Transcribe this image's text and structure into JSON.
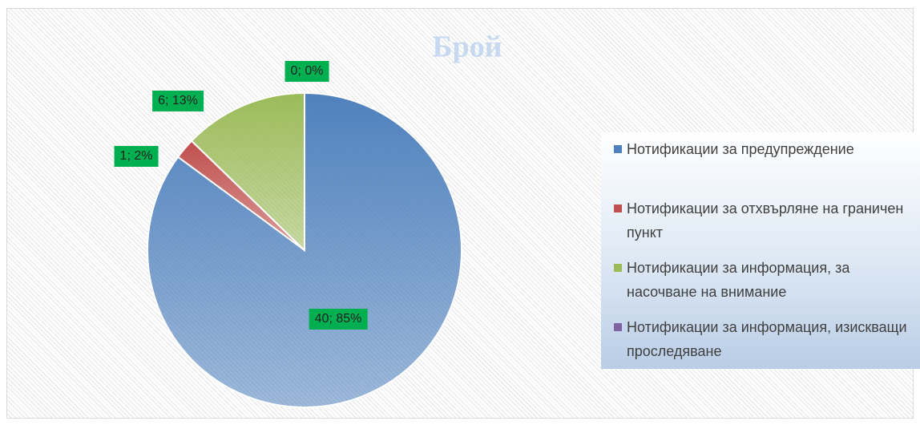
{
  "chart_data": {
    "type": "pie",
    "title": "Брой",
    "categories": [
      "Нотификации за предупреждение",
      "Нотификации за отхвърляне на граничен пункт",
      "Нотификации за информация, за насочване на внимание",
      "Нотификации за информация, изискващи проследяване"
    ],
    "values": [
      40,
      1,
      6,
      0
    ],
    "value_labels": [
      "40; 85%",
      "1; 2%",
      "6; 13%",
      "0; 0%"
    ],
    "colors": [
      "#4f81bd",
      "#c0504d",
      "#9bbb59",
      "#8064a2"
    ],
    "legend": "right"
  }
}
